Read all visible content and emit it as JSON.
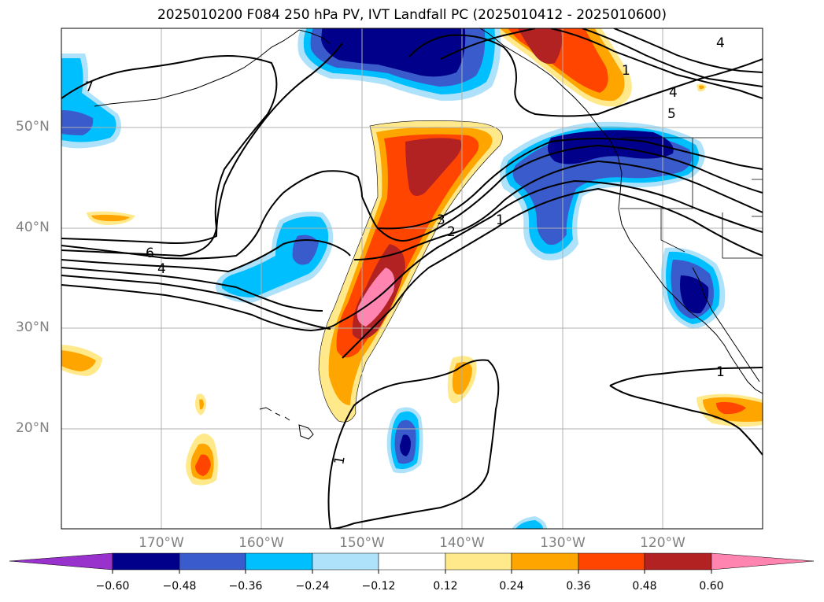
{
  "title": "2025010200 F084 250 hPa PV, IVT Landfall PC (2025010412 - 2025010600)",
  "lat_labels": [
    "50°N",
    "40°N",
    "30°N",
    "20°N"
  ],
  "lon_labels": [
    "170°W",
    "160°W",
    "150°W",
    "140°W",
    "130°W",
    "120°W"
  ],
  "contour_labels": [
    "7",
    "6",
    "4",
    "3",
    "2",
    "1",
    "1",
    "5",
    "4",
    "4",
    "1",
    "1"
  ],
  "colorbar": {
    "ticks": [
      "−0.60",
      "−0.48",
      "−0.36",
      "−0.24",
      "−0.12",
      "0.12",
      "0.24",
      "0.36",
      "0.48",
      "0.60"
    ],
    "colors": [
      "#9932cc",
      "#00008b",
      "#3a5bcc",
      "#00bfff",
      "#aee2fa",
      "#ffffff",
      "#ffe98a",
      "#ffa500",
      "#ff4500",
      "#b22222",
      "#ff85b0"
    ]
  }
}
